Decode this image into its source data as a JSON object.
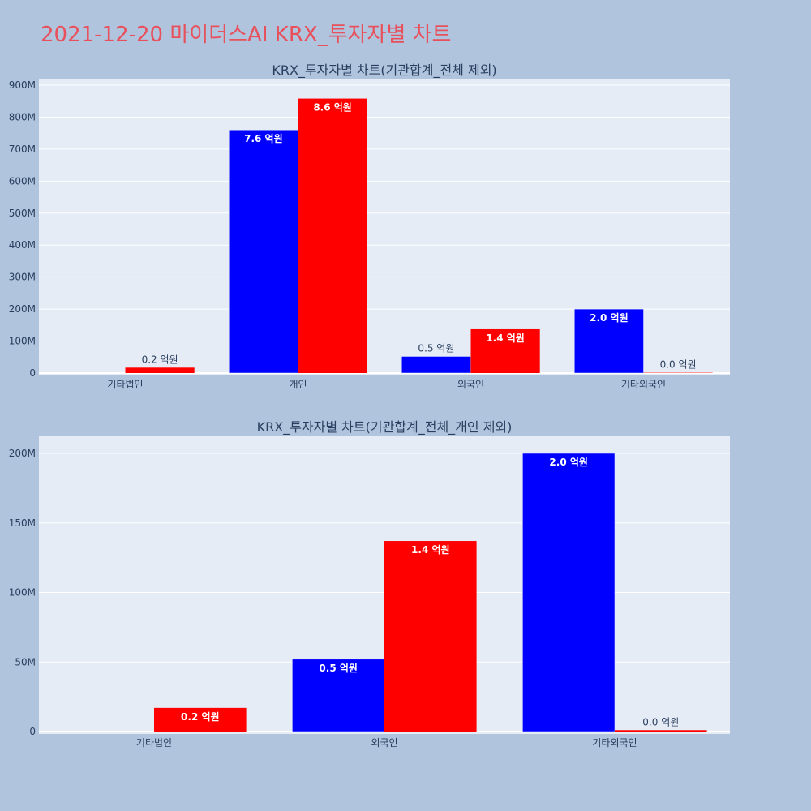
{
  "page_title": "2021-12-20 마이더스AI KRX_투자자별 차트",
  "colors": {
    "series_a": "#0000ff",
    "series_b": "#ff0000",
    "background": "#b0c4de",
    "plot_bg": "#e5ecf6",
    "title": "#e8505b"
  },
  "chart_data": [
    {
      "type": "bar",
      "title": "KRX_투자자별 차트(기관합계_전체 제외)",
      "categories": [
        "기타법인",
        "개인",
        "외국인",
        "기타외국인"
      ],
      "series": [
        {
          "color": "#0000ff",
          "values": [
            0,
            760000000,
            52000000,
            200000000
          ],
          "labels": [
            "",
            "7.6 억원",
            "0.5 억원",
            "2.0 억원"
          ]
        },
        {
          "color": "#ff0000",
          "values": [
            17000000,
            858000000,
            137000000,
            1000000
          ],
          "labels": [
            "0.2 억원",
            "8.6 억원",
            "1.4 억원",
            "0.0 억원"
          ]
        }
      ],
      "ylim": [
        0,
        900000000
      ],
      "yticks": [
        0,
        100000000,
        200000000,
        300000000,
        400000000,
        500000000,
        600000000,
        700000000,
        800000000,
        900000000
      ],
      "ytick_labels": [
        "0",
        "100M",
        "200M",
        "300M",
        "400M",
        "500M",
        "600M",
        "700M",
        "800M",
        "900M"
      ],
      "grid": true,
      "legend": "none"
    },
    {
      "type": "bar",
      "title": "KRX_투자자별 차트(기관합계_전체_개인 제외)",
      "categories": [
        "기타법인",
        "외국인",
        "기타외국인"
      ],
      "series": [
        {
          "color": "#0000ff",
          "values": [
            0,
            52000000,
            200000000
          ],
          "labels": [
            "",
            "0.5 억원",
            "2.0 억원"
          ]
        },
        {
          "color": "#ff0000",
          "values": [
            17000000,
            137000000,
            1000000
          ],
          "labels": [
            "0.2 억원",
            "1.4 억원",
            "0.0 억원"
          ]
        }
      ],
      "ylim": [
        0,
        200000000
      ],
      "yticks": [
        0,
        50000000,
        100000000,
        150000000,
        200000000
      ],
      "ytick_labels": [
        "0",
        "50M",
        "100M",
        "150M",
        "200M"
      ],
      "grid": true,
      "legend": "none"
    }
  ]
}
